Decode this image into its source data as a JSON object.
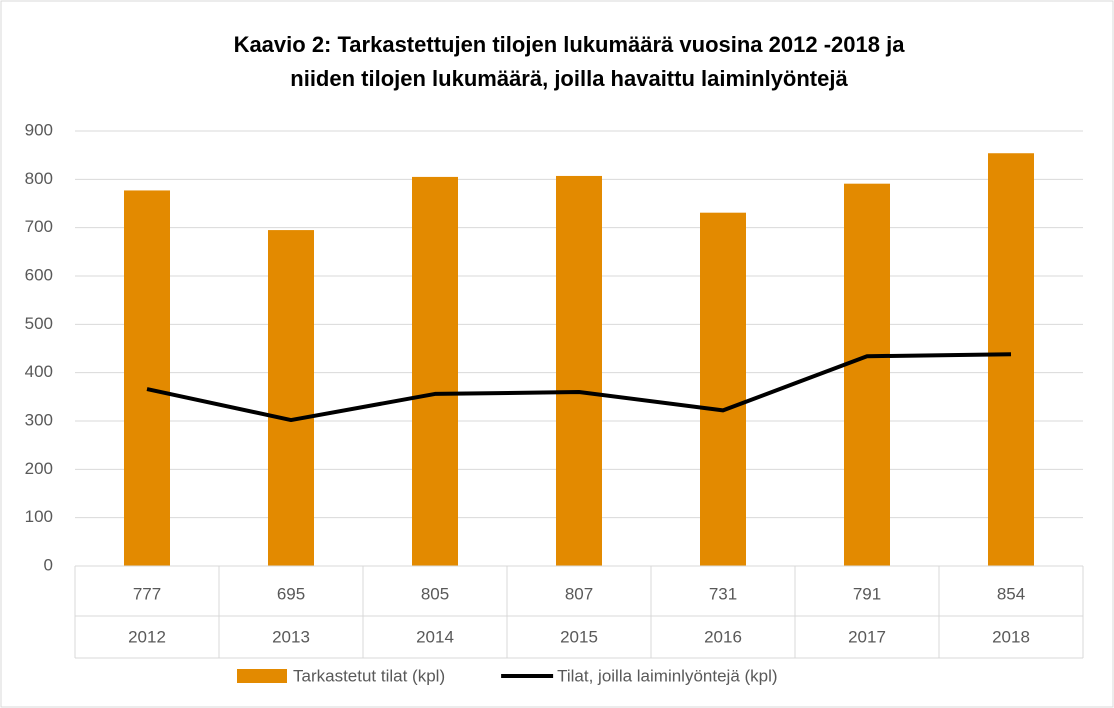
{
  "chart_data": {
    "type": "bar-line",
    "title": [
      "Kaavio 2: Tarkastettujen tilojen lukumäärä vuosina 2012 -2018 ja",
      "niiden tilojen lukumäärä, joilla havaittu laiminlyöntejä"
    ],
    "categories": [
      "2012",
      "2013",
      "2014",
      "2015",
      "2016",
      "2017",
      "2018"
    ],
    "series": [
      {
        "name": "Tarkastetut tilat (kpl)",
        "type": "bar",
        "color": "#e38a00",
        "values": [
          777,
          695,
          805,
          807,
          731,
          791,
          854
        ]
      },
      {
        "name": "Tilat, joilla laiminlyöntejä (kpl)",
        "type": "line",
        "color": "#000000",
        "values": [
          366,
          302,
          356,
          360,
          322,
          434,
          438
        ]
      }
    ],
    "ylim": [
      0,
      900
    ],
    "yticks": [
      0,
      100,
      200,
      300,
      400,
      500,
      600,
      700,
      800,
      900
    ],
    "grid": true,
    "legend": "bottom",
    "data_table": true
  }
}
